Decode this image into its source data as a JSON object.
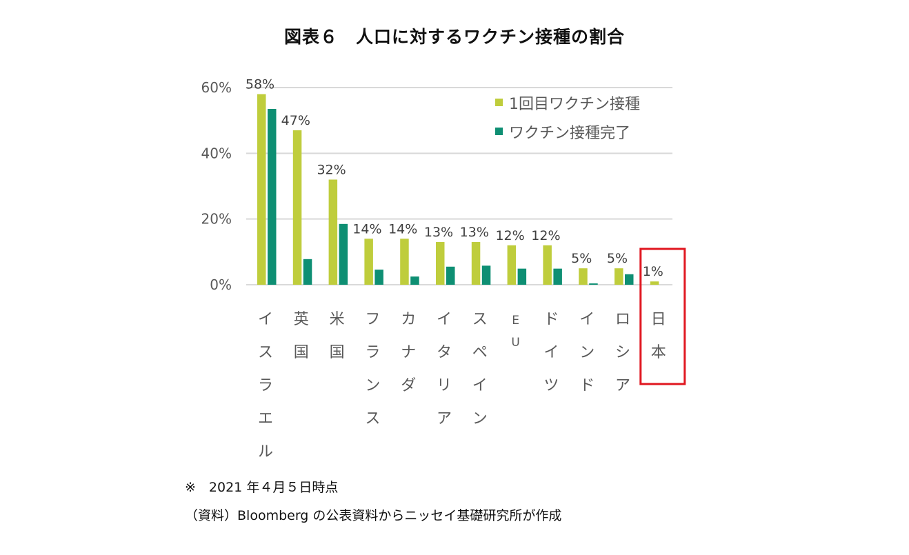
{
  "title": "図表６　人口に対するワクチン接種の割合",
  "footnote": "※　2021 年４月５日時点",
  "source": "（資料）Bloomberg の公表資料からニッセイ基礎研究所が作成",
  "colors": {
    "first_dose": "#bfcd3c",
    "fully_vaccinated": "#0e8f73",
    "highlight_box": "#e0161f",
    "grid": "#d9d9d9",
    "tick_text": "#595959"
  },
  "chart_data": {
    "type": "bar",
    "categories": [
      "イスラエル",
      "英国",
      "米国",
      "フランス",
      "カナダ",
      "イタリア",
      "スペイン",
      "EU",
      "ドイツ",
      "インド",
      "ロシア",
      "日本"
    ],
    "series": [
      {
        "name": "1回目ワクチン接種",
        "values": [
          58,
          47,
          32,
          14,
          14,
          13,
          13,
          12,
          12,
          5,
          5,
          1
        ],
        "labels": [
          "58%",
          "47%",
          "32%",
          "14%",
          "14%",
          "13%",
          "13%",
          "12%",
          "12%",
          "5%",
          "5%",
          "1%"
        ]
      },
      {
        "name": "ワクチン接種完了",
        "values": [
          53.5,
          7.8,
          18.5,
          4.6,
          2.5,
          5.5,
          5.8,
          4.9,
          4.9,
          0.4,
          3.2,
          0
        ]
      }
    ],
    "yticks": [
      "0%",
      "20%",
      "40%",
      "60%"
    ],
    "ylim": [
      0,
      60
    ],
    "highlighted_category": "日本",
    "legend_position": "top-right",
    "grid": true
  }
}
